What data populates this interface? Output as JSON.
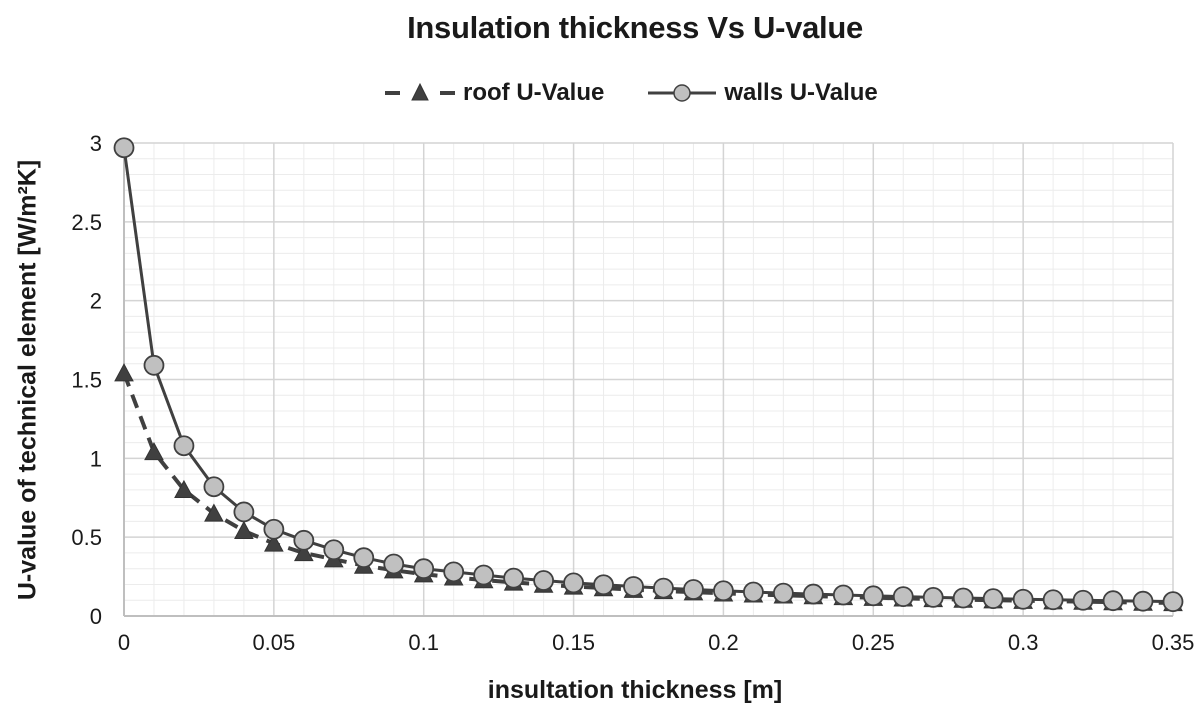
{
  "chart_data": {
    "type": "line",
    "title": "Insulation thickness Vs U-value",
    "xlabel": "insultation thickness [m]",
    "ylabel": "U-value of technical element [W/m²K]",
    "xlim": [
      0,
      0.35
    ],
    "ylim": [
      0,
      3
    ],
    "x_major_ticks": [
      0,
      0.05,
      0.1,
      0.15,
      0.2,
      0.25,
      0.3,
      0.35
    ],
    "x_tick_labels": [
      "0",
      "0.05",
      "0.1",
      "0.15",
      "0.2",
      "0.25",
      "0.3",
      "0.35"
    ],
    "x_minor_step": 0.01,
    "y_major_ticks": [
      0,
      0.5,
      1,
      1.5,
      2,
      2.5,
      3
    ],
    "y_tick_labels": [
      "0",
      "0.5",
      "1",
      "1.5",
      "2",
      "2.5",
      "3"
    ],
    "y_minor_step": 0.1,
    "grid": true,
    "legend_position": "top-center",
    "x": [
      0,
      0.01,
      0.02,
      0.03,
      0.04,
      0.05,
      0.06,
      0.07,
      0.08,
      0.09,
      0.1,
      0.11,
      0.12,
      0.13,
      0.14,
      0.15,
      0.16,
      0.17,
      0.18,
      0.19,
      0.2,
      0.21,
      0.22,
      0.23,
      0.24,
      0.25,
      0.26,
      0.27,
      0.28,
      0.29,
      0.3,
      0.31,
      0.32,
      0.33,
      0.34,
      0.35
    ],
    "series": [
      {
        "name": "roof U-Value",
        "line_style": "dashed",
        "marker": "triangle",
        "color": "#404040",
        "values": [
          1.54,
          1.04,
          0.8,
          0.65,
          0.54,
          0.46,
          0.4,
          0.36,
          0.32,
          0.29,
          0.265,
          0.245,
          0.228,
          0.213,
          0.199,
          0.187,
          0.177,
          0.167,
          0.159,
          0.151,
          0.144,
          0.137,
          0.131,
          0.126,
          0.121,
          0.116,
          0.112,
          0.108,
          0.104,
          0.1,
          0.097,
          0.094,
          0.091,
          0.088,
          0.085,
          0.083
        ]
      },
      {
        "name": "walls U-Value",
        "line_style": "solid",
        "marker": "circle",
        "color": "#404040",
        "marker_fill": "#c0c0c0",
        "values": [
          2.97,
          1.59,
          1.08,
          0.82,
          0.66,
          0.55,
          0.48,
          0.42,
          0.37,
          0.33,
          0.3,
          0.28,
          0.26,
          0.24,
          0.225,
          0.21,
          0.198,
          0.187,
          0.177,
          0.168,
          0.16,
          0.152,
          0.145,
          0.139,
          0.133,
          0.128,
          0.123,
          0.118,
          0.114,
          0.11,
          0.106,
          0.103,
          0.1,
          0.097,
          0.094,
          0.091
        ]
      }
    ]
  }
}
